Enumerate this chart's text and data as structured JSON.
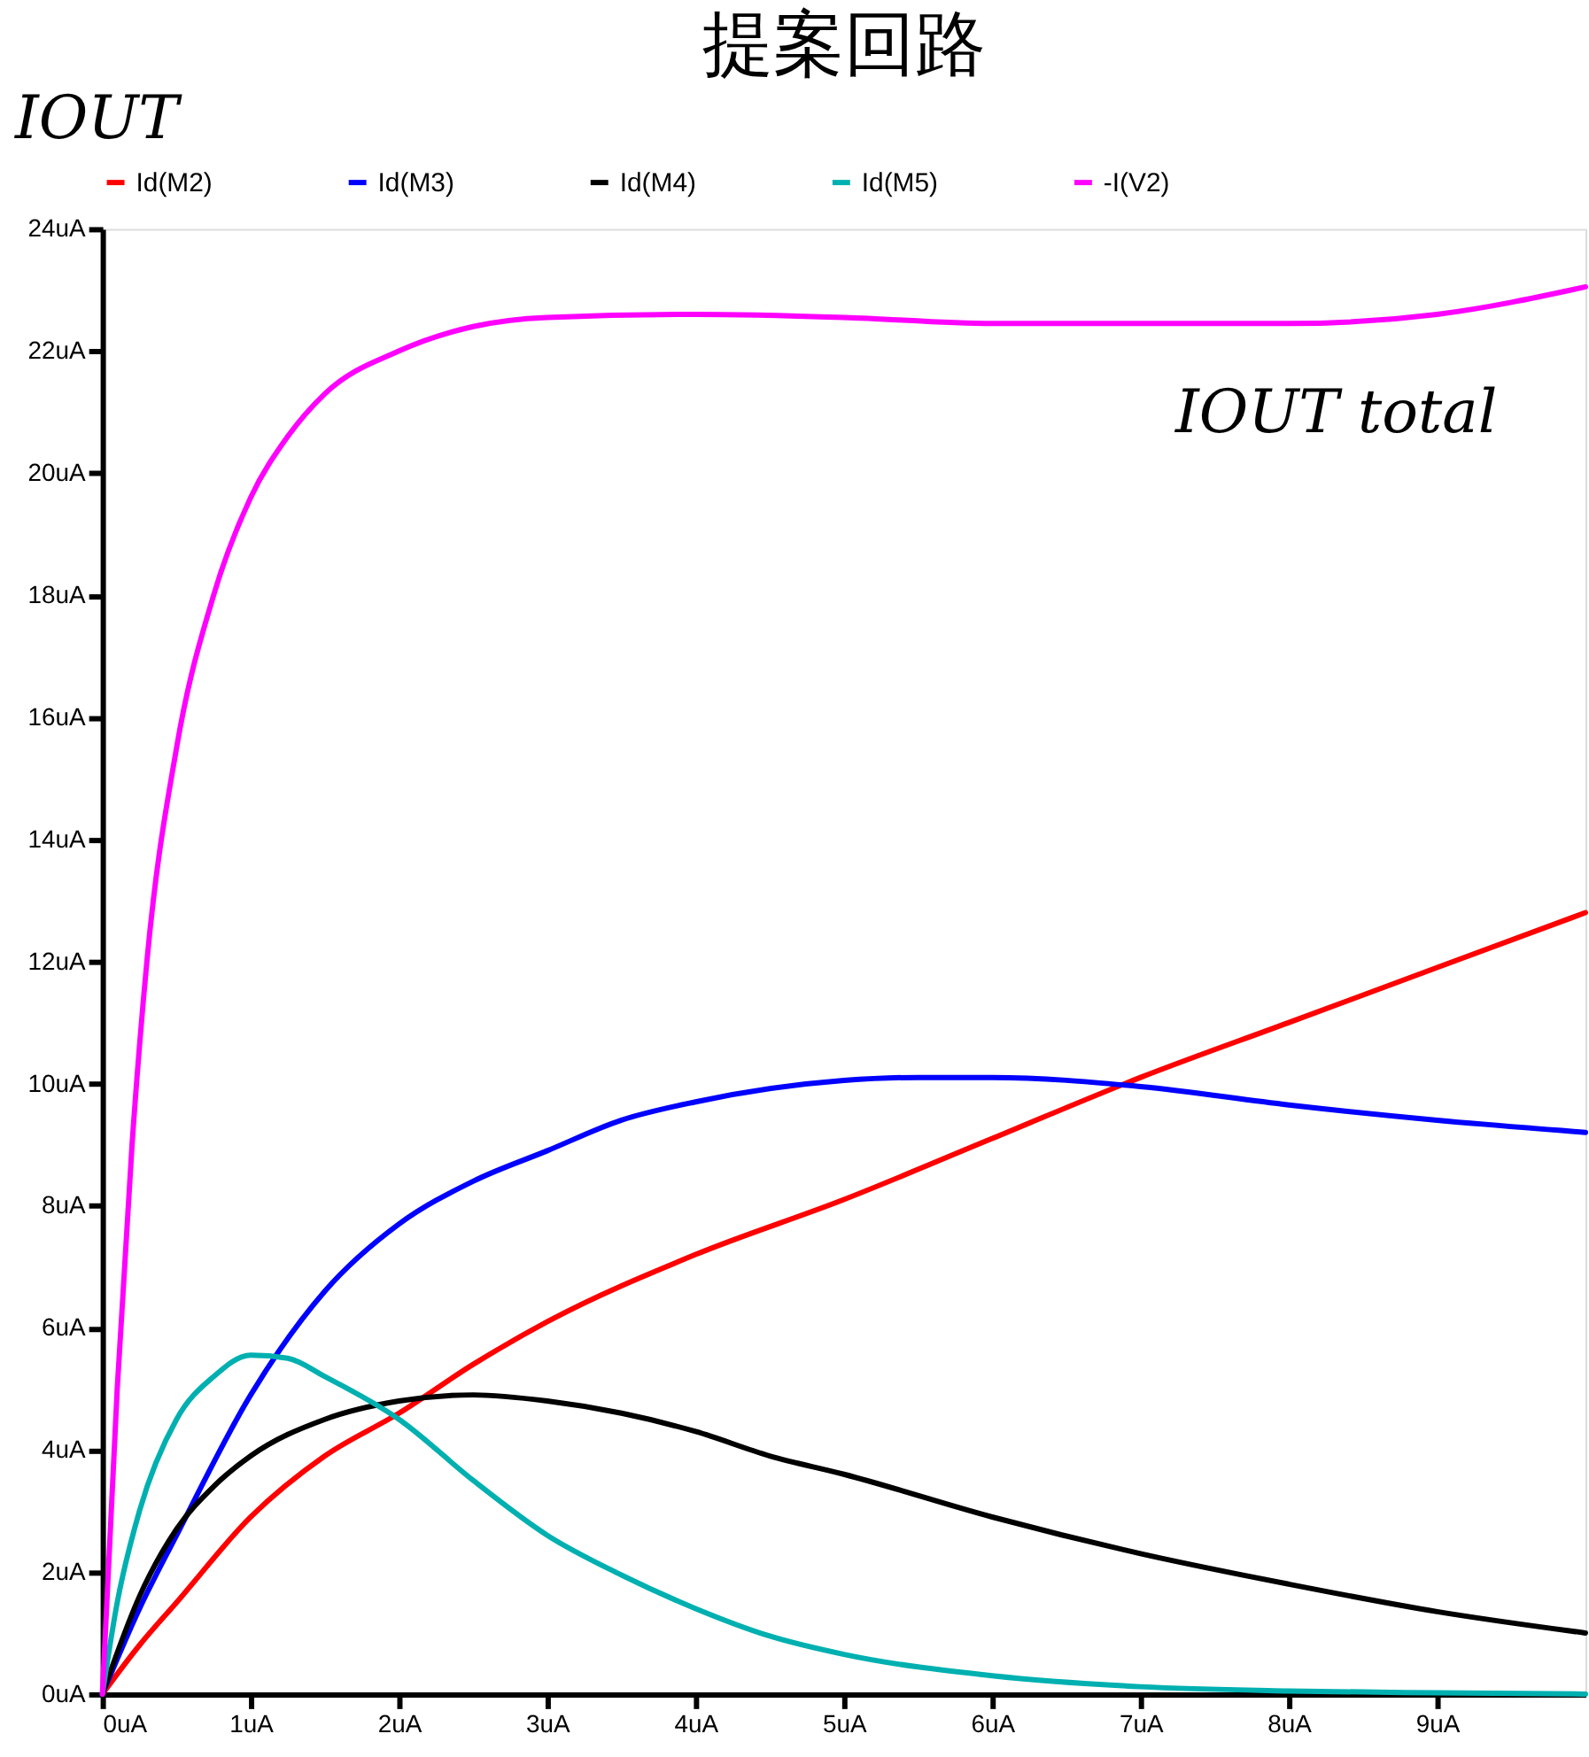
{
  "chart_data": {
    "type": "line",
    "title": "提案回路",
    "ylabel": "IOUT",
    "annotations": [
      "IOUT total"
    ],
    "xlim": [
      0,
      10
    ],
    "ylim": [
      0,
      24
    ],
    "xticks": [
      {
        "value": 0,
        "label": "0uA"
      },
      {
        "value": 1,
        "label": "1uA"
      },
      {
        "value": 2,
        "label": "2uA"
      },
      {
        "value": 3,
        "label": "3uA"
      },
      {
        "value": 4,
        "label": "4uA"
      },
      {
        "value": 5,
        "label": "5uA"
      },
      {
        "value": 6,
        "label": "6uA"
      },
      {
        "value": 7,
        "label": "7uA"
      },
      {
        "value": 8,
        "label": "8uA"
      },
      {
        "value": 9,
        "label": "9uA"
      }
    ],
    "yticks": [
      {
        "value": 0,
        "label": "0uA"
      },
      {
        "value": 2,
        "label": "2uA"
      },
      {
        "value": 4,
        "label": "4uA"
      },
      {
        "value": 6,
        "label": "6uA"
      },
      {
        "value": 8,
        "label": "8uA"
      },
      {
        "value": 10,
        "label": "10uA"
      },
      {
        "value": 12,
        "label": "12uA"
      },
      {
        "value": 14,
        "label": "14uA"
      },
      {
        "value": 16,
        "label": "16uA"
      },
      {
        "value": 18,
        "label": "18uA"
      },
      {
        "value": 20,
        "label": "20uA"
      },
      {
        "value": 22,
        "label": "22uA"
      },
      {
        "value": 24,
        "label": "24uA"
      }
    ],
    "grid": false,
    "legend": "top",
    "marker": "none",
    "line_style": "solid",
    "series": [
      {
        "name": "Id(M2)",
        "color": "#ff0000",
        "x": [
          0,
          0.25,
          0.5,
          1,
          1.5,
          2,
          2.5,
          3,
          4,
          5,
          6,
          7,
          8,
          9,
          10
        ],
        "values": [
          0,
          0.8,
          1.5,
          2.9,
          3.9,
          4.6,
          5.4,
          6.1,
          7.2,
          8.1,
          9.1,
          10.1,
          11.0,
          11.9,
          12.8
        ]
      },
      {
        "name": "Id(M3)",
        "color": "#0000ff",
        "x": [
          0,
          0.25,
          0.5,
          1,
          1.5,
          2,
          2.5,
          3,
          3.5,
          4,
          5,
          5.5,
          6,
          7,
          8,
          9,
          10
        ],
        "values": [
          0,
          1.4,
          2.6,
          4.9,
          6.6,
          7.7,
          8.4,
          8.9,
          9.4,
          9.7,
          10.05,
          10.1,
          10.1,
          9.95,
          9.65,
          9.4,
          9.2
        ]
      },
      {
        "name": "Id(M4)",
        "color": "#000000",
        "x": [
          0,
          0.25,
          0.5,
          0.75,
          1,
          1.5,
          2,
          2.5,
          3,
          3.5,
          4,
          4.5,
          5,
          6,
          7,
          8,
          9,
          10
        ],
        "values": [
          0,
          1.6,
          2.7,
          3.4,
          3.9,
          4.5,
          4.8,
          4.9,
          4.8,
          4.6,
          4.3,
          3.9,
          3.6,
          2.9,
          2.3,
          1.8,
          1.35,
          1.0
        ]
      },
      {
        "name": "Id(M5)",
        "color": "#00b0b0",
        "x": [
          0,
          0.1,
          0.25,
          0.5,
          0.75,
          1,
          1.25,
          1.5,
          2,
          2.5,
          3,
          3.5,
          4,
          4.5,
          5,
          6,
          7,
          8,
          9,
          10
        ],
        "values": [
          0,
          1.5,
          3,
          4.5,
          5.2,
          5.55,
          5.5,
          5.2,
          4.5,
          3.5,
          2.6,
          1.95,
          1.4,
          0.95,
          0.65,
          0.3,
          0.12,
          0.05,
          0.02,
          0
        ]
      },
      {
        "name": "-I(V2)",
        "color": "#ff00ff",
        "x": [
          0,
          0.1,
          0.2,
          0.3,
          0.5,
          0.75,
          1,
          1.25,
          1.5,
          2,
          2.5,
          3,
          4,
          5,
          6,
          7,
          8,
          9,
          10
        ],
        "values": [
          0,
          5,
          9,
          12,
          15.5,
          18,
          19.6,
          20.6,
          21.3,
          22.0,
          22.4,
          22.55,
          22.6,
          22.55,
          22.45,
          22.45,
          22.45,
          22.6,
          23.05
        ]
      }
    ]
  }
}
